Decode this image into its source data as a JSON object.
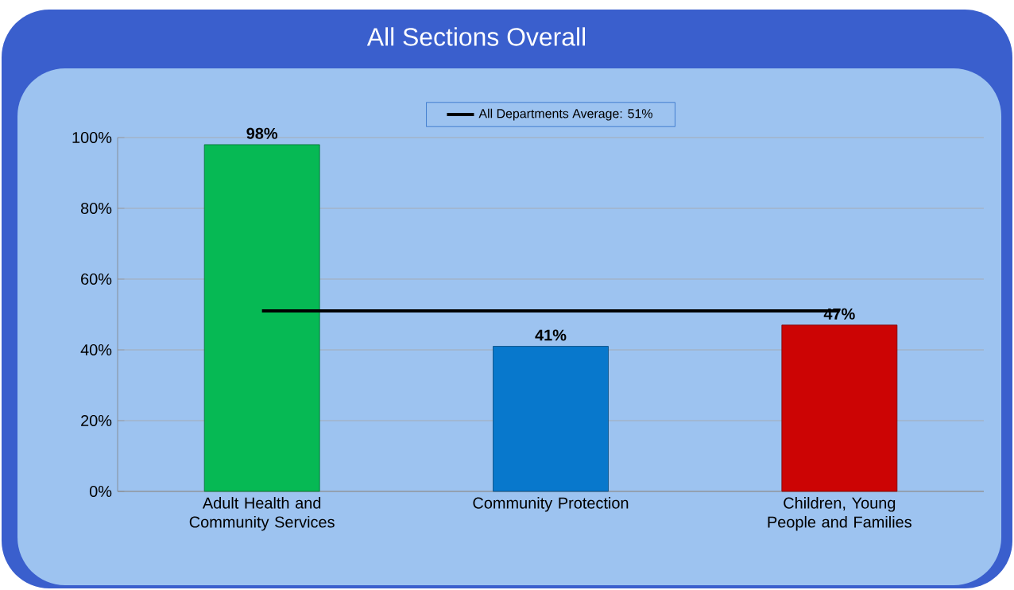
{
  "chart_data": {
    "type": "bar",
    "title": "All Sections Overall",
    "categories": [
      "Adult Health and Community Services",
      "Community Protection",
      "Children, Young People and Families"
    ],
    "series": [
      {
        "values": [
          98,
          41,
          47
        ],
        "colors": [
          "#06b954",
          "#0878cc",
          "#cc0404"
        ],
        "value_labels": [
          "98%",
          "41%",
          "47%"
        ]
      },
      {
        "type": "line",
        "name": "All Departments Average: 51%",
        "color": "#000000",
        "values": [
          51,
          51,
          51
        ]
      }
    ],
    "ylim": [
      0,
      100
    ],
    "yticks": [
      {
        "value": 0,
        "label": "0%"
      },
      {
        "value": 20,
        "label": "20%"
      },
      {
        "value": 40,
        "label": "40%"
      },
      {
        "value": 60,
        "label": "60%"
      },
      {
        "value": 80,
        "label": "80%"
      },
      {
        "value": 100,
        "label": "100%"
      }
    ],
    "grid": "y",
    "legend": "top"
  }
}
